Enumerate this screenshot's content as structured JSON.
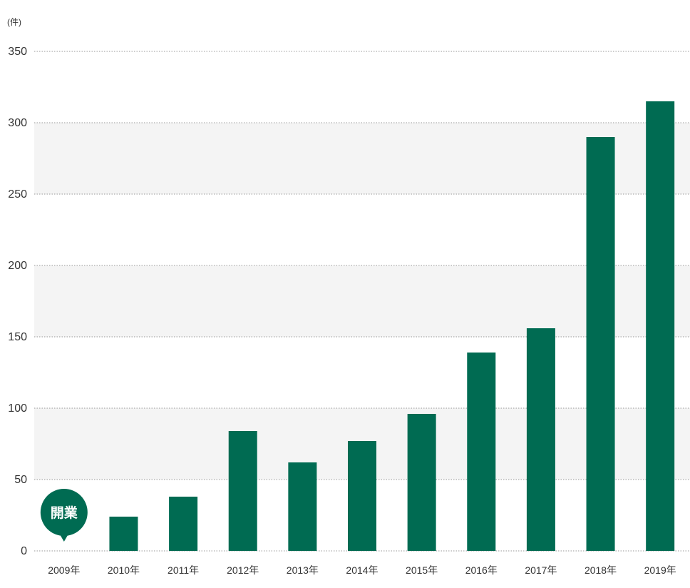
{
  "chart_data": {
    "type": "bar",
    "unit": "(件)",
    "categories": [
      "2009年",
      "2010年",
      "2011年",
      "2012年",
      "2013年",
      "2014年",
      "2015年",
      "2016年",
      "2017年",
      "2018年",
      "2019年"
    ],
    "values": [
      0,
      24,
      38,
      84,
      62,
      77,
      96,
      139,
      156,
      290,
      315
    ],
    "ylim": [
      0,
      350
    ],
    "yticks": [
      0,
      50,
      100,
      150,
      200,
      250,
      300,
      350
    ],
    "grid": true,
    "annotation": {
      "category": "2009年",
      "label": "開業"
    },
    "colors": {
      "bar": "#006b52",
      "band": "#f4f4f4",
      "grid": "#999999",
      "text": "#333333"
    }
  }
}
